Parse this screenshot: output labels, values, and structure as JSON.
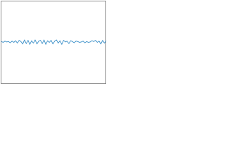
{
  "chart_data": {
    "type": "line",
    "color": "#3a8fc8",
    "ylim": [
      -1,
      1
    ],
    "values": [
      0.02,
      0.0,
      0.03,
      0.01,
      0.02,
      -0.01,
      0.03,
      0.0,
      0.04,
      -0.02,
      0.05,
      0.02,
      -0.04,
      0.06,
      -0.03,
      0.05,
      -0.05,
      0.04,
      -0.02,
      0.06,
      -0.04,
      0.03,
      0.05,
      -0.03,
      0.06,
      -0.05,
      0.04,
      0.0,
      0.05,
      -0.04,
      0.03,
      0.06,
      -0.02,
      0.04,
      -0.05,
      0.05,
      0.01,
      0.03,
      -0.03,
      0.04,
      0.02,
      -0.01,
      0.03,
      0.02,
      0.0,
      0.01,
      0.03,
      -0.01,
      0.02,
      0.0,
      0.01,
      0.04,
      0.02,
      0.05,
      0.0,
      0.03,
      -0.04,
      0.05,
      -0.02,
      0.04
    ]
  }
}
